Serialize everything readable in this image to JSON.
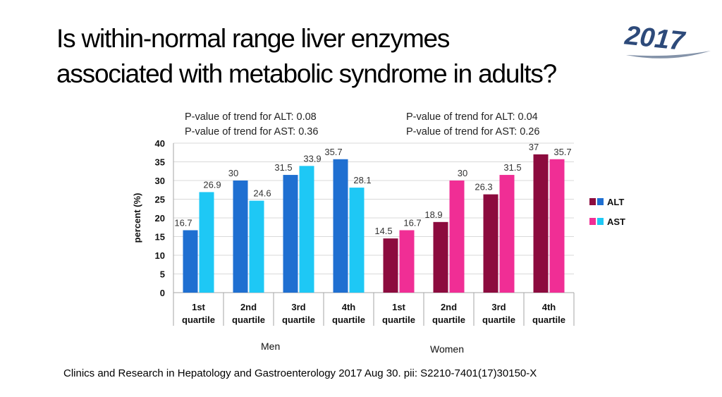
{
  "title": {
    "line1": "Is within-normal range liver enzymes",
    "line2": "associated with metabolic syndrome in adults?"
  },
  "badge": {
    "text": "2017"
  },
  "pvalues": {
    "men": {
      "alt": "P-value of trend for ALT: 0.08",
      "ast": "P-value of trend for AST: 0.36"
    },
    "women": {
      "alt": "P-value of trend for ALT: 0.04",
      "ast": "P-value of trend for AST: 0.26"
    }
  },
  "group_labels": {
    "men": "Men",
    "women": "Women"
  },
  "citation": "Clinics and Research in Hepatology and Gastroenterology 2017 Aug 30. pii: S2210-7401(17)30150-X",
  "colors": {
    "men_alt": "#1f6fd1",
    "men_ast": "#1ec8f5",
    "women_alt": "#8c0b3e",
    "women_ast": "#f02e95",
    "grid": "#d9d9d9",
    "axis": "#a6a6a6"
  },
  "chart_data": {
    "type": "bar",
    "ylabel": "percent (%)",
    "xlabel": "",
    "ylim": [
      0,
      40
    ],
    "yticks": [
      0,
      5,
      10,
      15,
      20,
      25,
      30,
      35,
      40
    ],
    "categories": [
      [
        "1st",
        "quartile"
      ],
      [
        "2nd",
        "quartile"
      ],
      [
        "3rd",
        "quartile"
      ],
      [
        "4th",
        "quartile"
      ],
      [
        "1st",
        "quartile"
      ],
      [
        "2nd",
        "quartile"
      ],
      [
        "3rd",
        "quartile"
      ],
      [
        "4th",
        "quartile"
      ]
    ],
    "groups": [
      "Men",
      "Men",
      "Men",
      "Men",
      "Women",
      "Women",
      "Women",
      "Women"
    ],
    "series": [
      {
        "name": "ALT",
        "values": [
          16.7,
          30,
          31.5,
          35.7,
          14.5,
          18.9,
          26.3,
          37
        ]
      },
      {
        "name": "AST",
        "values": [
          26.9,
          24.6,
          33.9,
          28.1,
          16.7,
          30,
          31.5,
          35.7
        ]
      }
    ],
    "value_labels": [
      [
        "16.7",
        "30",
        "31.5",
        "35.7",
        "14.5",
        "18.9",
        "26.3",
        "37"
      ],
      [
        "26.9",
        "24.6",
        "33.9",
        "28.1",
        "16.7",
        "30",
        "31.5",
        "35.7"
      ]
    ],
    "legend": {
      "position": "right",
      "entries": [
        "ALT",
        "AST"
      ]
    },
    "grid": true
  }
}
